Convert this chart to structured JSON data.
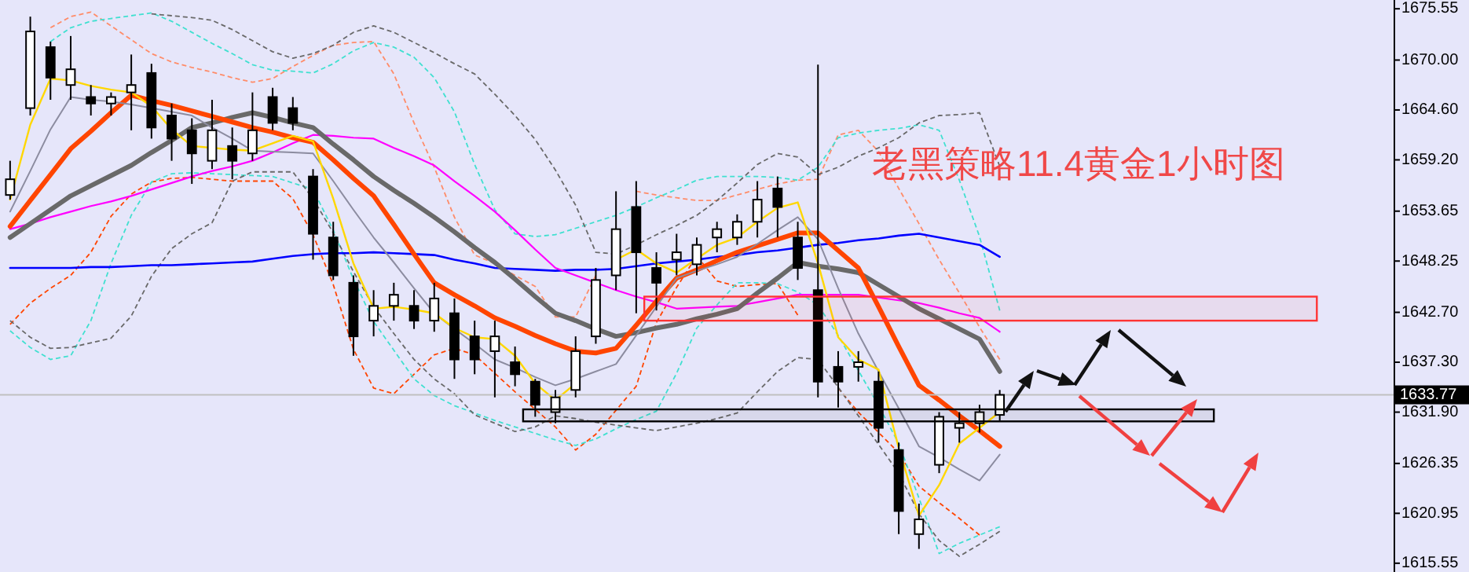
{
  "chart_data": {
    "type": "candlestick",
    "title": "老黑策略11.4黄金1小时图",
    "categories": [
      null,
      null,
      null,
      null,
      null,
      null,
      null,
      null,
      null,
      null,
      null,
      null,
      null,
      null,
      null,
      null,
      null,
      null,
      null,
      null,
      null,
      null,
      null,
      null,
      null,
      null,
      null,
      null,
      null,
      null,
      null,
      null,
      null,
      null,
      null,
      null,
      null,
      null,
      null,
      null,
      null,
      null,
      null,
      null,
      null,
      null,
      null,
      null,
      null,
      null,
      null,
      null,
      null,
      null,
      null,
      null,
      null,
      null,
      null,
      null,
      null,
      null,
      null,
      null,
      null,
      null,
      null,
      null,
      null
    ],
    "ohlc": [
      [
        1655.4,
        1659.1,
        1654.9,
        1657.1
      ],
      [
        1664.8,
        1674.7,
        1664.0,
        1673.1
      ],
      [
        1671.4,
        1672.0,
        1665.7,
        1668.1
      ],
      [
        1667.3,
        1672.6,
        1665.7,
        1669.0
      ],
      [
        1666.0,
        1667.3,
        1664.0,
        1665.3
      ],
      [
        1665.3,
        1666.5,
        1664.0,
        1666.0
      ],
      [
        1666.5,
        1670.6,
        1662.4,
        1667.3
      ],
      [
        1668.6,
        1669.6,
        1661.5,
        1662.7
      ],
      [
        1664.0,
        1665.3,
        1659.1,
        1661.5
      ],
      [
        1662.4,
        1663.7,
        1656.6,
        1659.9
      ],
      [
        1659.1,
        1665.7,
        1658.2,
        1662.4
      ],
      [
        1660.7,
        1662.7,
        1657.1,
        1659.1
      ],
      [
        1659.9,
        1666.5,
        1659.1,
        1662.4
      ],
      [
        1666.0,
        1667.0,
        1662.4,
        1663.2
      ],
      [
        1664.8,
        1666.0,
        1662.4,
        1663.2
      ],
      [
        1657.4,
        1658.2,
        1648.4,
        1651.2
      ],
      [
        1650.8,
        1652.5,
        1646.2,
        1646.7
      ],
      [
        1645.9,
        1646.7,
        1638.0,
        1640.1
      ],
      [
        1641.8,
        1645.1,
        1640.1,
        1643.4
      ],
      [
        1643.4,
        1645.9,
        1641.8,
        1644.6
      ],
      [
        1643.4,
        1645.1,
        1640.9,
        1641.8
      ],
      [
        1641.8,
        1645.9,
        1640.6,
        1644.2
      ],
      [
        1642.6,
        1644.2,
        1635.5,
        1637.6
      ],
      [
        1640.1,
        1641.8,
        1636.0,
        1637.6
      ],
      [
        1638.5,
        1641.8,
        1633.5,
        1640.1
      ],
      [
        1637.3,
        1639.0,
        1634.7,
        1636.0
      ],
      [
        1635.2,
        1635.5,
        1631.4,
        1632.7
      ],
      [
        1631.9,
        1634.3,
        1630.7,
        1633.5
      ],
      [
        1634.3,
        1640.1,
        1633.5,
        1638.5
      ],
      [
        1640.1,
        1647.5,
        1639.3,
        1646.2
      ],
      [
        1646.7,
        1655.8,
        1645.1,
        1651.7
      ],
      [
        1654.1,
        1656.9,
        1642.6,
        1649.2
      ],
      [
        1647.5,
        1649.2,
        1642.9,
        1645.9
      ],
      [
        1648.4,
        1651.2,
        1646.7,
        1649.2
      ],
      [
        1647.9,
        1650.8,
        1646.7,
        1650.0
      ],
      [
        1650.8,
        1652.5,
        1649.2,
        1651.7
      ],
      [
        1650.8,
        1653.3,
        1650.0,
        1652.5
      ],
      [
        1652.5,
        1656.9,
        1650.8,
        1654.9
      ],
      [
        1656.1,
        1657.4,
        1650.8,
        1654.1
      ],
      [
        1650.8,
        1652.5,
        1646.2,
        1647.5
      ],
      [
        1645.1,
        1669.5,
        1633.5,
        1635.2
      ],
      [
        1636.8,
        1638.5,
        1632.4,
        1635.2
      ],
      [
        1636.8,
        1638.5,
        1635.2,
        1637.3
      ],
      [
        1635.2,
        1636.3,
        1628.6,
        1630.2
      ],
      [
        1627.8,
        1628.6,
        1618.7,
        1621.2
      ],
      [
        1618.7,
        1622.0,
        1617.1,
        1620.3
      ],
      [
        1626.2,
        1631.9,
        1625.3,
        1631.4
      ],
      [
        1630.2,
        1631.9,
        1628.6,
        1630.7
      ],
      [
        1630.7,
        1632.7,
        1629.7,
        1631.9
      ],
      [
        1631.6,
        1634.3,
        1631.0,
        1633.77
      ],
      null,
      null,
      null,
      null,
      null,
      null,
      null,
      null,
      null,
      null,
      null,
      null,
      null,
      null,
      null,
      null,
      null,
      null,
      null
    ],
    "series": [
      {
        "type": "line",
        "color": "#ff8c69",
        "line_style": "dashed",
        "values": [
          null,
          null,
          1673.5,
          1674.7,
          1675.2,
          1673.7,
          1672.2,
          1670.7,
          1669.8,
          1669.2,
          1668.7,
          1668.1,
          1667.6,
          1668.0,
          1669.3,
          1670.5,
          1671.6,
          1671.9,
          1672.0,
          1668.5,
          1663.2,
          1658.4,
          1653.0,
          1648.9,
          1648.0,
          1646.7,
          1645.5,
          1642.2,
          1642.2,
          1646.7,
          null,
          1655.8,
          1655.4,
          1655.1,
          1654.8,
          1654.8,
          1655.4,
          1656.0,
          1656.6,
          1657.0,
          1657.1,
          1661.9,
          1662.4,
          1660.1,
          1656.1,
          1652.3,
          1648.4,
          1644.8,
          1641.1,
          1637.6,
          null,
          null,
          null,
          null,
          null,
          null,
          null,
          null,
          null,
          null,
          null,
          null,
          null,
          null,
          null,
          null,
          null,
          null,
          null
        ]
      },
      {
        "type": "line",
        "color": "#ff4500",
        "line_style": "dashed",
        "values": [
          1641.4,
          1643.7,
          1645.3,
          1646.7,
          1649.2,
          1653.1,
          1655.5,
          1656.8,
          1657.2,
          1657.3,
          1657.1,
          1656.9,
          1656.9,
          1656.9,
          1655.0,
          1651.1,
          1645.7,
          1638.7,
          1634.5,
          1633.9,
          1636.0,
          1638.1,
          1638.8,
          1638.1,
          1636.1,
          1634.1,
          1632.2,
          1630.3,
          1627.8,
          1629.5,
          1632.1,
          1634.7,
          1641.6,
          1645.4,
          1648.8,
          1646.1,
          1645.5,
          1645.7,
          1645.8,
          1642.4,
          null,
          1634.5,
          1631.9,
          1629.7,
          1627.5,
          1623.9,
          1622.1,
          1620.4,
          1618.6,
          null,
          null,
          null,
          null,
          null,
          null,
          null,
          null,
          null,
          null,
          null,
          null,
          null,
          null,
          null,
          null,
          null,
          null,
          null,
          null
        ]
      },
      {
        "type": "line",
        "color": "#40e0d0",
        "line_style": "dashed",
        "values": [
          null,
          null,
          1672.0,
          1673.5,
          1674.2,
          1674.5,
          1674.8,
          1675.1,
          1674.2,
          1673.0,
          1671.8,
          1670.7,
          1669.5,
          1668.9,
          1668.8,
          1668.6,
          1669.6,
          1671.0,
          1671.9,
          1671.4,
          1670.3,
          1668.1,
          1664.4,
          1658.7,
          1653.8,
          1651.2,
          1650.9,
          1651.1,
          1651.8,
          1652.5,
          1653.2,
          1654.1,
          1655.1,
          1656.0,
          1657.0,
          1657.4,
          1657.4,
          1657.4,
          1657.3,
          1657.0,
          1658.4,
          1661.6,
          1662.1,
          1662.4,
          1662.6,
          1663.0,
          1662.4,
          1657.0,
          1650.9,
          1642.9,
          null,
          null,
          null,
          null,
          null,
          null,
          null,
          null,
          null,
          null,
          null,
          null,
          null,
          null,
          null,
          null,
          null,
          null,
          null
        ]
      },
      {
        "type": "line",
        "color": "#40e0d0",
        "line_style": "dashed",
        "values": [
          1640.7,
          1638.9,
          1637.6,
          1638.0,
          1641.8,
          1648.0,
          1653.2,
          1656.8,
          1657.7,
          1657.8,
          1657.7,
          1657.6,
          1657.5,
          1657.4,
          1656.7,
          1656.0,
          1651.6,
          1646.3,
          1641.7,
          1638.6,
          1635.5,
          1633.7,
          1632.6,
          1631.8,
          1631.0,
          1630.3,
          1629.6,
          1628.9,
          1628.3,
          1629.0,
          1630.1,
          1631.1,
          1632.0,
          1636.1,
          1641.0,
          1643.5,
          1645.9,
          1645.9,
          1645.8,
          1644.9,
          1643.5,
          1640.2,
          1636.4,
          1632.6,
          1628.5,
          1622.6,
          1616.6,
          1617.7,
          1618.6,
          1619.5,
          null,
          null,
          null,
          null,
          null,
          null,
          null,
          null,
          null,
          null,
          null,
          null,
          null,
          null,
          null,
          null,
          null,
          null,
          null
        ]
      },
      {
        "type": "line",
        "color": "#696969",
        "line_style": "dashed",
        "values": [
          null,
          null,
          null,
          null,
          null,
          null,
          null,
          1675.0,
          1674.8,
          1674.6,
          1674.3,
          1673.3,
          1672.1,
          1670.9,
          1670.2,
          1670.7,
          1671.6,
          1673.0,
          1673.7,
          1673.0,
          1671.9,
          1670.8,
          1669.6,
          1668.5,
          1666.3,
          1664.0,
          1661.4,
          1658.1,
          1654.3,
          1649.2,
          1649.0,
          1650.0,
          1651.1,
          1652.1,
          1653.2,
          1654.8,
          1656.7,
          1658.7,
          1659.9,
          1659.5,
          1657.6,
          1658.4,
          1659.6,
          1660.5,
          1661.6,
          1663.2,
          1664.0,
          1664.1,
          1664.3,
          1658.5,
          null,
          null,
          null,
          null,
          null,
          null,
          null,
          null,
          null,
          null,
          null,
          null,
          null,
          null,
          null,
          null,
          null,
          null,
          null
        ]
      },
      {
        "type": "line",
        "color": "#696969",
        "line_style": "dashed",
        "values": [
          1641.8,
          1640.0,
          1638.8,
          1638.9,
          1639.4,
          1639.9,
          1642.3,
          1646.6,
          1649.6,
          1651.2,
          1652.4,
          1656.9,
          1657.9,
          1657.9,
          1657.9,
          1655.0,
          1651.3,
          1647.1,
          1643.3,
          1640.4,
          1637.6,
          1635.5,
          1633.9,
          1631.6,
          1630.7,
          1629.8,
          1630.3,
          1631.5,
          1631.2,
          1630.8,
          1630.5,
          1630.2,
          1629.9,
          1630.3,
          1630.7,
          1631.2,
          1631.8,
          1634.1,
          1636.3,
          1637.8,
          1637.6,
          1634.6,
          1631.5,
          1628.4,
          1625.3,
          1620.9,
          1618.0,
          1616.3,
          1617.6,
          1619.0,
          null,
          null,
          null,
          null,
          null,
          null,
          null,
          null,
          null,
          null,
          null,
          null,
          null,
          null,
          null,
          null,
          null,
          null,
          null
        ]
      },
      {
        "type": "line",
        "color": "#0000ff",
        "line_style": "solid",
        "values": [
          1647.5,
          1647.5,
          1647.5,
          1647.5,
          1647.6,
          1647.6,
          1647.7,
          1647.8,
          1647.8,
          1647.9,
          1648.0,
          1648.1,
          1648.2,
          1648.5,
          1648.8,
          1649.0,
          1649.1,
          1649.1,
          1649.2,
          1649.1,
          1649.0,
          1648.9,
          1648.4,
          1648.0,
          1647.5,
          1647.4,
          1647.3,
          1647.2,
          1647.3,
          1647.3,
          1647.4,
          1647.7,
          1648.0,
          1648.2,
          1648.4,
          1648.7,
          1648.9,
          1649.2,
          1649.4,
          1649.7,
          1650.0,
          1650.2,
          1650.5,
          1650.7,
          1651.0,
          1651.2,
          1650.8,
          1650.4,
          1650.0,
          1648.7,
          null,
          null,
          null,
          null,
          null,
          null,
          null,
          null,
          null,
          null,
          null,
          null,
          null,
          null,
          null,
          null,
          null,
          null,
          null
        ]
      },
      {
        "type": "line",
        "color": "#ff00ff",
        "line_style": "solid",
        "values": [
          1651.7,
          1652.3,
          1653.0,
          1653.6,
          1654.2,
          1654.7,
          1655.3,
          1656.0,
          1656.7,
          1657.4,
          1658.0,
          1658.5,
          1659.1,
          1660.0,
          1661.0,
          1661.9,
          1661.8,
          1661.6,
          1661.5,
          1660.5,
          1659.6,
          1658.6,
          1656.9,
          1655.3,
          1653.6,
          1651.6,
          1649.5,
          1647.5,
          1646.7,
          1645.9,
          1645.1,
          1644.4,
          1643.8,
          1643.1,
          1643.2,
          1643.3,
          1643.4,
          1643.8,
          1644.2,
          1644.6,
          1644.6,
          1644.6,
          1644.6,
          1644.3,
          1644.0,
          1643.7,
          1643.2,
          1642.6,
          1642.1,
          1640.6,
          null,
          null,
          null,
          null,
          null,
          null,
          null,
          null,
          null,
          null,
          null,
          null,
          null,
          null,
          null,
          null,
          null,
          null,
          null
        ]
      },
      {
        "type": "line",
        "color": "#696969",
        "line_style": "solid",
        "values": [
          1650.8,
          1652.3,
          1653.8,
          1655.3,
          1656.4,
          1657.5,
          1658.6,
          1660.0,
          1661.3,
          1662.7,
          1663.2,
          1663.8,
          1664.3,
          1663.8,
          1663.2,
          1662.7,
          1660.9,
          1659.2,
          1657.4,
          1655.9,
          1654.5,
          1653.0,
          1651.4,
          1649.7,
          1648.1,
          1646.3,
          1644.4,
          1642.6,
          1641.8,
          1640.9,
          1640.1,
          1640.5,
          1641.0,
          1641.4,
          1642.0,
          1642.5,
          1643.1,
          1644.8,
          1646.4,
          1648.1,
          1647.7,
          1647.4,
          1647.0,
          1645.7,
          1644.4,
          1643.1,
          1642.0,
          1640.9,
          1639.8,
          1636.3,
          null,
          null,
          null,
          null,
          null,
          null,
          null,
          null,
          null,
          null,
          null,
          null,
          null,
          null,
          null,
          null,
          null,
          null,
          null
        ]
      },
      {
        "type": "line",
        "color": "#ff4500",
        "line_style": "solid",
        "values": [
          1652.0,
          1654.8,
          1657.6,
          1660.4,
          1662.3,
          1664.3,
          1666.2,
          1665.6,
          1665.1,
          1664.5,
          1663.9,
          1663.3,
          1662.7,
          1662.2,
          1661.6,
          1661.1,
          1659.2,
          1657.2,
          1655.3,
          1652.2,
          1649.0,
          1645.9,
          1644.6,
          1643.4,
          1642.1,
          1641.2,
          1640.2,
          1639.3,
          1638.5,
          1638.3,
          1638.8,
          1641.3,
          1643.9,
          1646.4,
          1647.3,
          1648.3,
          1649.2,
          1649.9,
          1650.6,
          1651.3,
          1651.3,
          1649.4,
          1647.5,
          1643.3,
          1639.0,
          1634.8,
          1633.2,
          1631.5,
          1629.9,
          1628.2,
          null,
          null,
          null,
          null,
          null,
          null,
          null,
          null,
          null,
          null,
          null,
          null,
          null,
          null,
          null,
          null,
          null,
          null,
          null
        ]
      },
      {
        "type": "line",
        "color": "#8c8ca0",
        "line_style": "solid",
        "values": [
          1653.6,
          1658.0,
          1662.5,
          1666.0,
          1665.7,
          1665.5,
          1665.2,
          1664.8,
          1664.4,
          1664.0,
          1662.7,
          1661.5,
          1660.2,
          1660.1,
          1660.0,
          1659.9,
          1656.9,
          1653.8,
          1650.8,
          1648.1,
          1645.3,
          1642.6,
          1640.9,
          1639.3,
          1637.6,
          1636.7,
          1635.7,
          1634.8,
          1635.5,
          1636.3,
          1637.1,
          1640.2,
          1643.3,
          1646.4,
          1647.2,
          1647.9,
          1648.7,
          1650.1,
          1651.6,
          1653.0,
          1650.6,
          1645.3,
          1640.4,
          1636.3,
          1632.3,
          1628.2,
          1627.0,
          1625.7,
          1624.5,
          1627.3,
          null,
          null,
          null,
          null,
          null,
          null,
          null,
          null,
          null,
          null,
          null,
          null,
          null,
          null,
          null,
          null,
          null,
          null,
          null
        ]
      },
      {
        "type": "line",
        "color": "#ffd700",
        "line_style": "solid",
        "values": [
          1654.9,
          1663.0,
          1668.0,
          1667.8,
          1667.2,
          1666.8,
          1666.5,
          1665.0,
          1662.5,
          1660.7,
          1660.5,
          1660.3,
          1660.2,
          1661.0,
          1661.8,
          1661.2,
          1655.0,
          1648.0,
          1643.1,
          1643.3,
          1643.0,
          1642.6,
          1641.0,
          1640.0,
          1639.8,
          1638.0,
          1635.0,
          1633.2,
          1635.0,
          null,
          1648.4,
          1649.5,
          1648.0,
          1647.0,
          1648.5,
          1650.0,
          1650.8,
          1652.5,
          1654.0,
          1654.6,
          1648.0,
          1640.0,
          1637.6,
          1636.5,
          1628.0,
          1620.7,
          1624.0,
          1628.5,
          1630.2,
          1631.9,
          null,
          null,
          null,
          null,
          null,
          null,
          null,
          null,
          null,
          null,
          null,
          null,
          null,
          null,
          null,
          null,
          null,
          null,
          null
        ]
      }
    ],
    "bands": [
      {
        "axis": "y",
        "from": 1641.8,
        "to": 1644.4,
        "color": "#ff3333"
      },
      {
        "axis": "y",
        "from": 1630.9,
        "to": 1632.2,
        "color": "#000000"
      }
    ],
    "ref_lines": [
      {
        "axis": "y",
        "value": 1633.77,
        "label": "1633.77",
        "color": "#c0c0c0"
      }
    ],
    "ylim": [
      1614.6,
      1676.5
    ],
    "yticks": [
      {
        "value": 1675.55,
        "label": "1675.55"
      },
      {
        "value": 1670,
        "label": "1670.00"
      },
      {
        "value": 1664.6,
        "label": "1664.60"
      },
      {
        "value": 1659.2,
        "label": "1659.20"
      },
      {
        "value": 1653.65,
        "label": "1653.65"
      },
      {
        "value": 1648.25,
        "label": "1648.25"
      },
      {
        "value": 1642.7,
        "label": "1642.70"
      },
      {
        "value": 1637.3,
        "label": "1637.30"
      },
      {
        "value": 1631.9,
        "label": "1631.90"
      },
      {
        "value": 1626.35,
        "label": "1626.35"
      },
      {
        "value": 1620.95,
        "label": "1620.95"
      },
      {
        "value": 1615.55,
        "label": "1615.55"
      }
    ]
  }
}
